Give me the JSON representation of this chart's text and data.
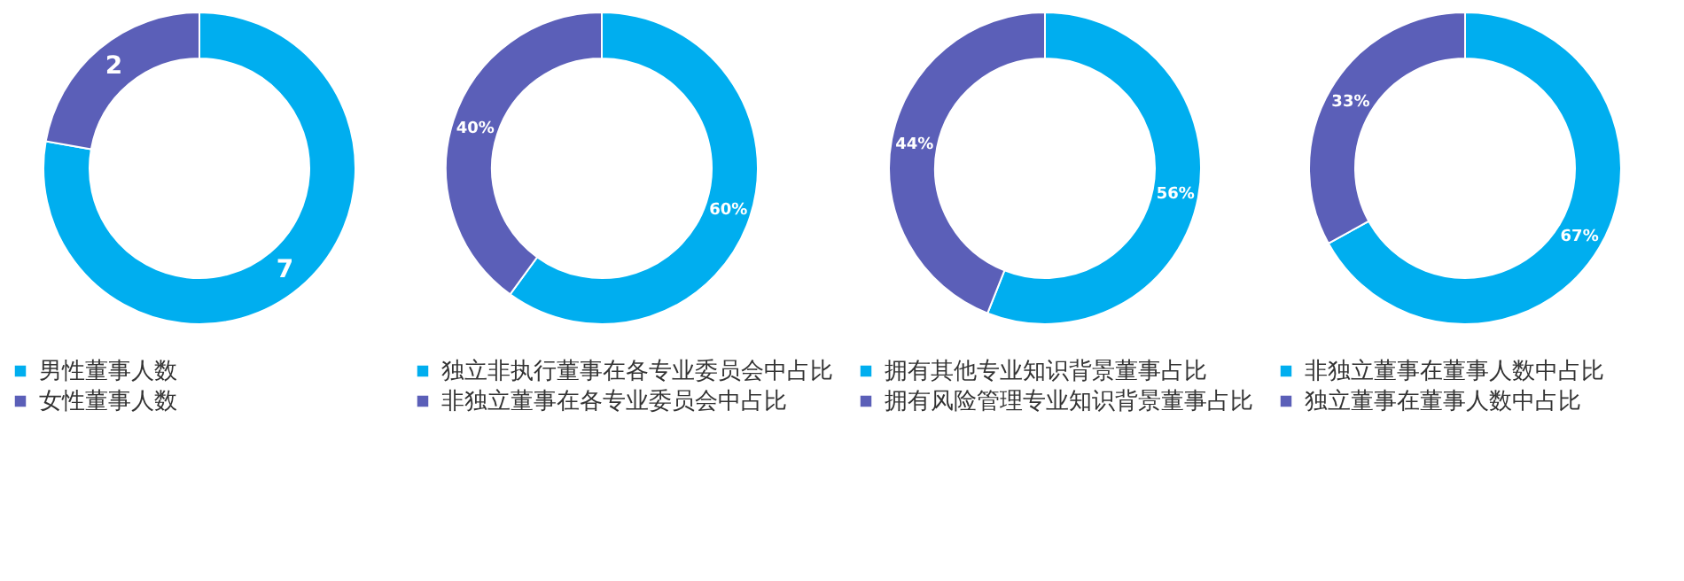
{
  "chart_data": [
    {
      "type": "donut",
      "categories": [
        "男性董事人数",
        "女性董事人数"
      ],
      "values": [
        7,
        2
      ],
      "colors": [
        "#00aeef",
        "#5b5fb8"
      ],
      "value_labels": [
        "7",
        "2"
      ],
      "legend": "bottom"
    },
    {
      "type": "donut",
      "categories": [
        "独立非执行董事在各专业委员会中占比",
        "非独立董事在各专业委员会中占比"
      ],
      "values": [
        60,
        40
      ],
      "colors": [
        "#00aeef",
        "#5b5fb8"
      ],
      "value_labels": [
        "60%",
        "40%"
      ],
      "legend": "bottom"
    },
    {
      "type": "donut",
      "categories": [
        "拥有其他专业知识背景董事占比",
        "拥有风险管理专业知识背景董事占比"
      ],
      "values": [
        56,
        44
      ],
      "colors": [
        "#00aeef",
        "#5b5fb8"
      ],
      "value_labels": [
        "56%",
        "44%"
      ],
      "legend": "bottom"
    },
    {
      "type": "donut",
      "categories": [
        "非独立董事在董事人数中占比",
        "独立董事在董事人数中占比"
      ],
      "values": [
        67,
        33
      ],
      "colors": [
        "#00aeef",
        "#5b5fb8"
      ],
      "value_labels": [
        "67%",
        "33%"
      ],
      "legend": "bottom"
    }
  ]
}
